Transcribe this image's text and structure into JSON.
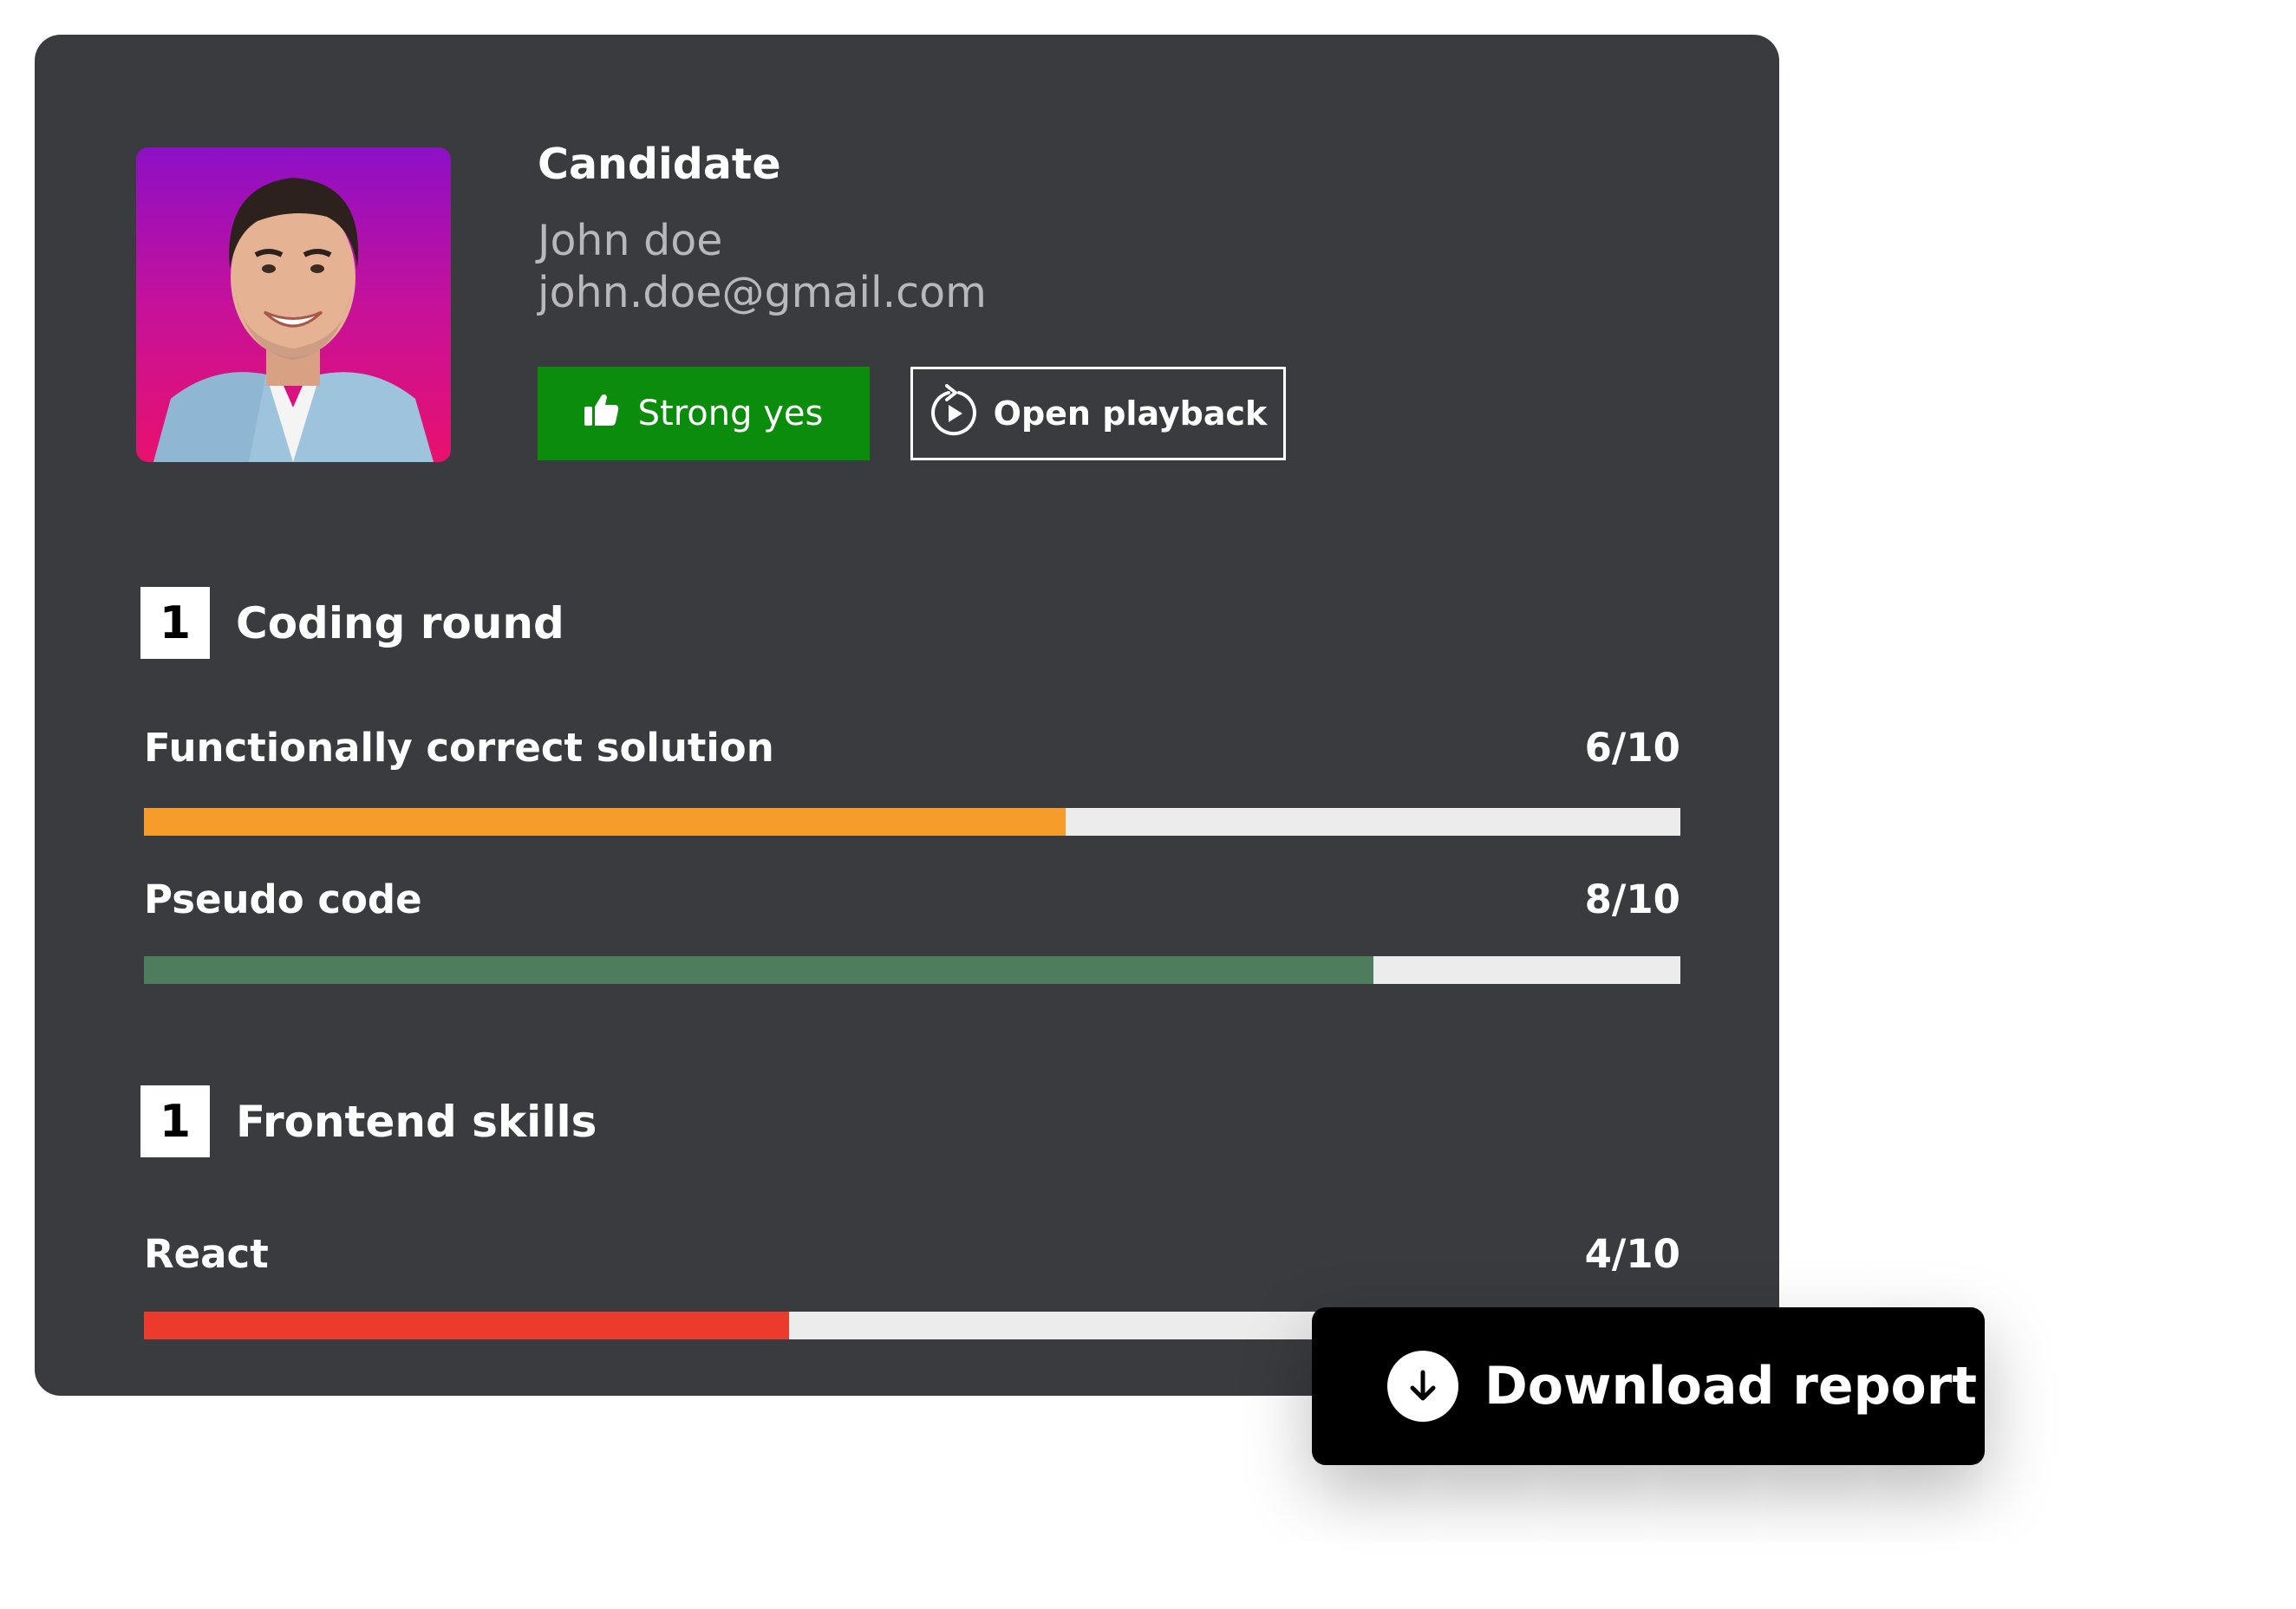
{
  "candidate": {
    "heading": "Candidate",
    "name": "John doe",
    "email": "john.doe@gmail.com"
  },
  "actions": {
    "verdict_label": "Strong yes",
    "verdict_icon": "thumbs-up-icon",
    "verdict_color": "#0c8c0c",
    "playback_label": "Open playback",
    "playback_icon": "replay-play-icon"
  },
  "sections": [
    {
      "number": "1",
      "title": "Coding round",
      "metrics": [
        {
          "label": "Functionally correct solution",
          "score_text": "6/10",
          "score": 6,
          "max": 10,
          "color": "#f59c2a"
        },
        {
          "label": "Pseudo code",
          "score_text": "8/10",
          "score": 8,
          "max": 10,
          "color": "#4e7d5e"
        }
      ]
    },
    {
      "number": "1",
      "title": "Frontend skills",
      "metrics": [
        {
          "label": "React",
          "score_text": "4/10",
          "score": 4.2,
          "max": 10,
          "color": "#ec3a2c"
        }
      ]
    }
  ],
  "download": {
    "label": "Download report",
    "icon": "download-arrow-icon"
  }
}
